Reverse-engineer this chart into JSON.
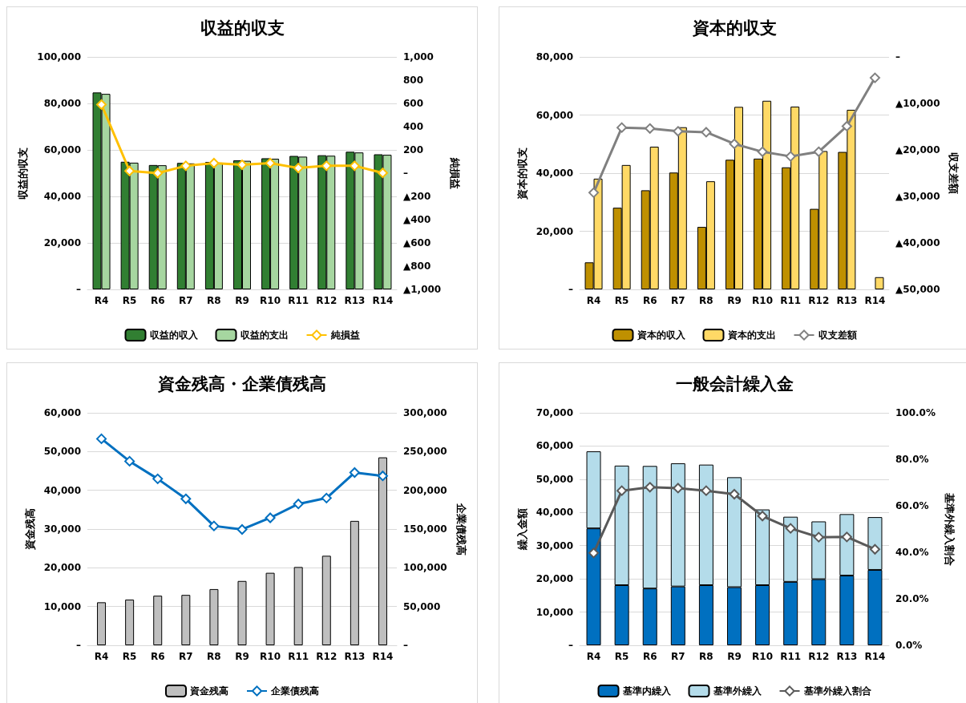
{
  "chart_data": [
    {
      "type": "bar",
      "title": "収益的収支",
      "ylabel": "収益的収支",
      "y2label": "純損益",
      "categories": [
        "R4",
        "R5",
        "R6",
        "R7",
        "R8",
        "R9",
        "R10",
        "R11",
        "R12",
        "R13",
        "R14"
      ],
      "series": [
        {
          "name": "収益的収入",
          "color": "#317f32",
          "values": [
            84700,
            54900,
            53500,
            54400,
            54800,
            55500,
            56400,
            57400,
            57700,
            59200,
            58100
          ]
        },
        {
          "name": "収益的支出",
          "color": "#a6d6a0",
          "values": [
            84100,
            54500,
            53400,
            54200,
            54500,
            55300,
            56200,
            57100,
            57500,
            58900,
            57900
          ]
        },
        {
          "name": "純損益",
          "type": "line",
          "axis": "y2",
          "color": "#ffc000",
          "values": [
            590,
            19,
            0,
            63,
            86,
            72,
            86,
            44,
            63,
            63,
            2
          ]
        }
      ],
      "ylim": [
        0,
        100000
      ],
      "yticks": [
        {
          "value": 0,
          "label": "–"
        },
        {
          "value": 20000,
          "label": "20,000"
        },
        {
          "value": 40000,
          "label": "40,000"
        },
        {
          "value": 60000,
          "label": "60,000"
        },
        {
          "value": 80000,
          "label": "80,000"
        },
        {
          "value": 100000,
          "label": "100,000"
        }
      ],
      "y2lim": [
        -1000,
        1000
      ],
      "y2ticks": [
        {
          "value": -1000,
          "label": "▲1,000"
        },
        {
          "value": -800,
          "label": "▲800"
        },
        {
          "value": -600,
          "label": "▲600"
        },
        {
          "value": -400,
          "label": "▲400"
        },
        {
          "value": -200,
          "label": "▲200"
        },
        {
          "value": 0,
          "label": "–"
        },
        200,
        400,
        600,
        800,
        {
          "value": 1000,
          "label": "1,000"
        }
      ],
      "grid": "y",
      "legend": "bottom",
      "marker": "diamond"
    },
    {
      "type": "bar",
      "title": "資本的収支",
      "ylabel": "資本的収支",
      "y2label": "収支差額",
      "categories": [
        "R4",
        "R5",
        "R6",
        "R7",
        "R8",
        "R9",
        "R10",
        "R11",
        "R12",
        "R13",
        "R14"
      ],
      "series": [
        {
          "name": "資本的収入",
          "color": "#bf9000",
          "values": [
            9300,
            28100,
            34100,
            40200,
            21500,
            44600,
            45000,
            42000,
            27700,
            47300,
            null
          ]
        },
        {
          "name": "資本的支出",
          "color": "#ffd966",
          "values": [
            38100,
            42800,
            49100,
            55800,
            37200,
            62800,
            64900,
            62900,
            47600,
            61800,
            4200
          ]
        },
        {
          "name": "収支差額",
          "type": "line",
          "axis": "y2",
          "color": "#808080",
          "values": [
            -29200,
            -15200,
            -15400,
            -16000,
            -16200,
            -18700,
            -20400,
            -21400,
            -20400,
            -14900,
            -4500
          ]
        }
      ],
      "ylim": [
        0,
        80000
      ],
      "yticks": [
        {
          "value": 0,
          "label": "–"
        },
        {
          "value": 20000,
          "label": "20,000"
        },
        {
          "value": 40000,
          "label": "40,000"
        },
        {
          "value": 60000,
          "label": "60,000"
        },
        {
          "value": 80000,
          "label": "80,000"
        }
      ],
      "y2lim": [
        -50000,
        0
      ],
      "y2ticks": [
        {
          "value": -50000,
          "label": "▲50,000"
        },
        {
          "value": -40000,
          "label": "▲40,000"
        },
        {
          "value": -30000,
          "label": "▲30,000"
        },
        {
          "value": -20000,
          "label": "▲20,000"
        },
        {
          "value": -10000,
          "label": "▲10,000"
        },
        {
          "value": 0,
          "label": "–"
        }
      ],
      "grid": "y",
      "legend": "bottom",
      "marker": "diamond"
    },
    {
      "type": "bar",
      "title": "資金残高・企業債残高",
      "ylabel": "資金残高",
      "y2label": "企業債残高",
      "categories": [
        "R4",
        "R5",
        "R6",
        "R7",
        "R8",
        "R9",
        "R10",
        "R11",
        "R12",
        "R13",
        "R14"
      ],
      "series": [
        {
          "name": "資金残高",
          "color": "#bfbfbf",
          "values": [
            11100,
            11800,
            12800,
            13000,
            14500,
            16600,
            18700,
            20200,
            23100,
            32100,
            48500
          ]
        },
        {
          "name": "企業債残高",
          "type": "line",
          "axis": "y2",
          "color": "#0070c0",
          "values": [
            266500,
            237500,
            214800,
            189000,
            154000,
            149500,
            164500,
            182400,
            190000,
            222900,
            218600
          ]
        }
      ],
      "ylim": [
        0,
        60000
      ],
      "yticks": [
        {
          "value": 0,
          "label": "–"
        },
        {
          "value": 10000,
          "label": "10,000"
        },
        {
          "value": 20000,
          "label": "20,000"
        },
        {
          "value": 30000,
          "label": "30,000"
        },
        {
          "value": 40000,
          "label": "40,000"
        },
        {
          "value": 50000,
          "label": "50,000"
        },
        {
          "value": 60000,
          "label": "60,000"
        }
      ],
      "y2lim": [
        0,
        300000
      ],
      "y2ticks": [
        {
          "value": 0,
          "label": "–"
        },
        {
          "value": 50000,
          "label": "50,000"
        },
        {
          "value": 100000,
          "label": "100,000"
        },
        {
          "value": 150000,
          "label": "150,000"
        },
        {
          "value": 200000,
          "label": "200,000"
        },
        {
          "value": 250000,
          "label": "250,000"
        },
        {
          "value": 300000,
          "label": "300,000"
        }
      ],
      "grid": "y",
      "legend": "bottom",
      "marker": "diamond"
    },
    {
      "type": "bar",
      "title": "一般会計繰入金",
      "ylabel": "繰入金額",
      "y2label": "基準外繰入割合",
      "categories": [
        "R4",
        "R5",
        "R6",
        "R7",
        "R8",
        "R9",
        "R10",
        "R11",
        "R12",
        "R13",
        "R14"
      ],
      "stacked": true,
      "series": [
        {
          "name": "基準内繰入",
          "color": "#0070c0",
          "values": [
            35200,
            18100,
            17100,
            17700,
            18100,
            17500,
            18100,
            19100,
            19900,
            21000,
            22700
          ]
        },
        {
          "name": "基準外繰入",
          "color": "#b4dcea",
          "values": [
            23200,
            36000,
            36900,
            37100,
            36300,
            33100,
            22800,
            19600,
            17400,
            18500,
            15900
          ]
        },
        {
          "name": "基準外繰入割合",
          "type": "line",
          "axis": "y2",
          "color": "#595959",
          "values": [
            39.7,
            66.5,
            68.0,
            67.6,
            66.5,
            65.0,
            55.6,
            50.3,
            46.5,
            46.6,
            41.3
          ]
        }
      ],
      "ylim": [
        0,
        70000
      ],
      "yticks": [
        {
          "value": 0,
          "label": "–"
        },
        {
          "value": 10000,
          "label": "10,000"
        },
        {
          "value": 20000,
          "label": "20,000"
        },
        {
          "value": 30000,
          "label": "30,000"
        },
        {
          "value": 40000,
          "label": "40,000"
        },
        {
          "value": 50000,
          "label": "50,000"
        },
        {
          "value": 60000,
          "label": "60,000"
        },
        {
          "value": 70000,
          "label": "70,000"
        }
      ],
      "y2lim": [
        0,
        100
      ],
      "y2ticks": [
        {
          "value": 0,
          "label": "0.0%"
        },
        {
          "value": 20,
          "label": "20.0%"
        },
        {
          "value": 40,
          "label": "40.0%"
        },
        {
          "value": 60,
          "label": "60.0%"
        },
        {
          "value": 80,
          "label": "80.0%"
        },
        {
          "value": 100,
          "label": "100.0%"
        }
      ],
      "grid": "y",
      "legend": "bottom",
      "marker": "diamond"
    }
  ]
}
